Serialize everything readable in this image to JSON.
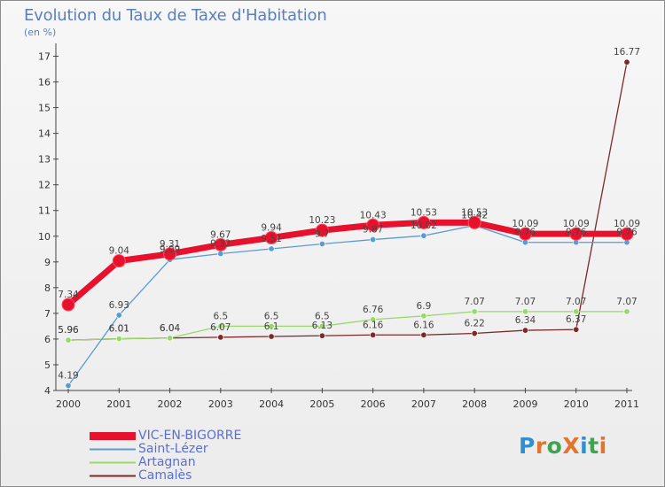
{
  "title": "Evolution du Taux de Taxe d'Habitation",
  "subtitle": "(en %)",
  "logo": {
    "text": "ProXiti",
    "letters": [
      {
        "ch": "P",
        "color": "#2f8fd1"
      },
      {
        "ch": "r",
        "color": "#e2742c"
      },
      {
        "ch": "o",
        "color": "#3fa44d"
      },
      {
        "ch": "X",
        "color": "#e2742c"
      },
      {
        "ch": "i",
        "color": "#2f8fd1"
      },
      {
        "ch": "t",
        "color": "#3fa44d"
      },
      {
        "ch": "i",
        "color": "#e2742c"
      }
    ]
  },
  "chart_data": {
    "type": "line",
    "title": "Evolution du Taux de Taxe d'Habitation",
    "ylabel": "(en %)",
    "xlabel": "",
    "x": [
      "2000",
      "2001",
      "2002",
      "2003",
      "2004",
      "2005",
      "2006",
      "2007",
      "2008",
      "2009",
      "2010",
      "2011"
    ],
    "ylim": [
      4,
      17.5
    ],
    "yticks": [
      4,
      5,
      6,
      7,
      8,
      9,
      10,
      11,
      12,
      13,
      14,
      15,
      16,
      17
    ],
    "series": [
      {
        "name": "VIC-EN-BIGORRE",
        "color": "#e8112d",
        "width": 7,
        "marker": 7,
        "values": [
          7.34,
          9.04,
          9.31,
          9.67,
          9.94,
          10.23,
          10.43,
          10.53,
          10.53,
          10.09,
          10.09,
          10.09
        ],
        "labels": [
          "7.34",
          "9.04",
          "9.31",
          "9.67",
          "9.94",
          "10.23",
          "10.43",
          "10.53",
          "10.53",
          "10.09",
          "10.09",
          "10.09"
        ]
      },
      {
        "name": "Saint-Lézer",
        "color": "#5b9bd5",
        "width": 1.3,
        "marker": 3.2,
        "values": [
          4.19,
          6.93,
          9.09,
          9.32,
          9.51,
          9.7,
          9.87,
          10.02,
          10.42,
          9.76,
          9.76,
          9.76
        ],
        "labels": [
          "4.19",
          "6.93",
          "9.09",
          "9.32",
          "9.51",
          "9.7",
          "9.87",
          "10.02",
          "10.42",
          "9.76",
          "9.76",
          "9.76"
        ]
      },
      {
        "name": "Artagnan",
        "color": "#99d86c",
        "width": 1.3,
        "marker": 3.2,
        "values": [
          5.96,
          6.01,
          6.04,
          6.5,
          6.5,
          6.5,
          6.76,
          6.9,
          7.07,
          7.07,
          7.07,
          7.07
        ],
        "labels": [
          "5.96",
          "6.01",
          "6.04",
          "6.5",
          "6.5",
          "6.5",
          "6.76",
          "6.9",
          "7.07",
          "7.07",
          "7.07",
          "7.07"
        ]
      },
      {
        "name": "Camalès",
        "color": "#7a2a2a",
        "width": 1.3,
        "marker": 3.2,
        "values": [
          5.96,
          6.01,
          6.04,
          6.07,
          6.1,
          6.13,
          6.16,
          6.16,
          6.22,
          6.34,
          6.37,
          16.77
        ],
        "labels": [
          "5.96",
          "6.01",
          "6.04",
          "6.07",
          "6.1",
          "6.13",
          "6.16",
          "6.16",
          "6.22",
          "6.34",
          "6.37",
          "16.77"
        ]
      }
    ],
    "legend": "bottom-left",
    "grid": false
  }
}
